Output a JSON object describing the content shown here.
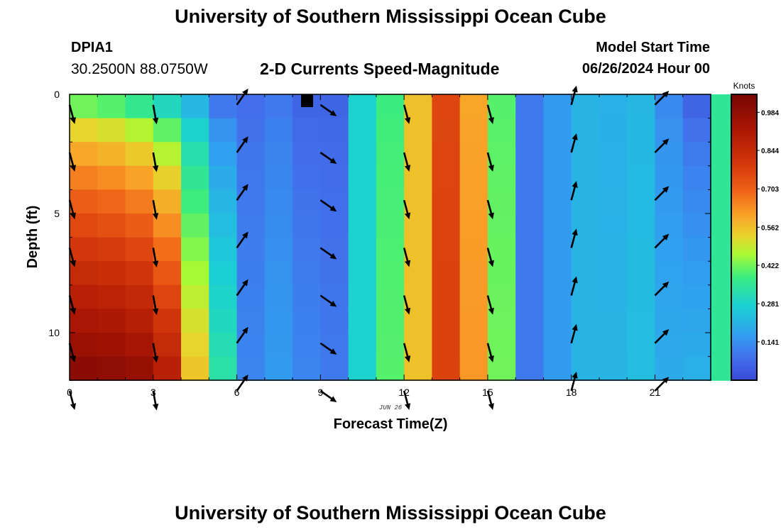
{
  "header": {
    "title": "University of Southern Mississippi Ocean Cube",
    "station_name": "DPIA1",
    "station_coords": "30.2500N  88.0750W",
    "chart_title": "2-D Currents Speed-Magnitude",
    "start_label": "Model Start Time",
    "start_value": "06/26/2024 Hour 00"
  },
  "footer": {
    "title": "University of Southern Mississippi Ocean Cube"
  },
  "chart_data": {
    "type": "heatmap",
    "title": "2-D Currents Speed-Magnitude",
    "xlabel": "Forecast Time(Z)",
    "ylabel": "Depth (ft)",
    "x_date_label": "JUN 26",
    "x_range": [
      0,
      23
    ],
    "y_range": [
      0,
      12
    ],
    "x_ticks": [
      0,
      3,
      6,
      9,
      12,
      15,
      18,
      21
    ],
    "y_ticks": [
      0,
      5,
      10
    ],
    "y_reversed": true,
    "colorbar": {
      "label": "Knots",
      "range": [
        0.0,
        1.05
      ],
      "ticks": [
        0.141,
        0.281,
        0.422,
        0.562,
        0.703,
        0.844,
        0.984
      ]
    },
    "columns": [
      {
        "hour": 0,
        "top": 0.42,
        "bottom": 1.0
      },
      {
        "hour": 1,
        "top": 0.4,
        "bottom": 0.99
      },
      {
        "hour": 2,
        "top": 0.36,
        "bottom": 0.97
      },
      {
        "hour": 3,
        "top": 0.3,
        "bottom": 0.88
      },
      {
        "hour": 4,
        "top": 0.22,
        "bottom": 0.55
      },
      {
        "hour": 5,
        "top": 0.1,
        "bottom": 0.33
      },
      {
        "hour": 6,
        "top": 0.08,
        "bottom": 0.12
      },
      {
        "hour": 7,
        "top": 0.1,
        "bottom": 0.16
      },
      {
        "hour": 8,
        "top": 0.06,
        "bottom": 0.12
      },
      {
        "hour": 9,
        "top": 0.06,
        "bottom": 0.1
      },
      {
        "hour": 10,
        "top": 0.28,
        "bottom": 0.28
      },
      {
        "hour": 11,
        "top": 0.38,
        "bottom": 0.4
      },
      {
        "hour": 12,
        "top": 0.56,
        "bottom": 0.56
      },
      {
        "hour": 13,
        "top": 0.76,
        "bottom": 0.77
      },
      {
        "hour": 14,
        "top": 0.6,
        "bottom": 0.62
      },
      {
        "hour": 15,
        "top": 0.4,
        "bottom": 0.42
      },
      {
        "hour": 16,
        "top": 0.1,
        "bottom": 0.1
      },
      {
        "hour": 17,
        "top": 0.16,
        "bottom": 0.16
      },
      {
        "hour": 18,
        "top": 0.21,
        "bottom": 0.21
      },
      {
        "hour": 19,
        "top": 0.2,
        "bottom": 0.21
      },
      {
        "hour": 20,
        "top": 0.22,
        "bottom": 0.23
      },
      {
        "hour": 21,
        "top": 0.13,
        "bottom": 0.19
      },
      {
        "hour": 22,
        "top": 0.06,
        "bottom": 0.2
      },
      {
        "hour": 23,
        "top": 0.35,
        "bottom": 0.35
      }
    ],
    "vectors": [
      {
        "hour": 0,
        "direction_deg": 165
      },
      {
        "hour": 3,
        "direction_deg": 170
      },
      {
        "hour": 6,
        "direction_deg": 35
      },
      {
        "hour": 9,
        "direction_deg": 125
      },
      {
        "hour": 12,
        "direction_deg": 165
      },
      {
        "hour": 15,
        "direction_deg": 165
      },
      {
        "hour": 18,
        "direction_deg": 15
      },
      {
        "hour": 21,
        "direction_deg": 45
      }
    ],
    "vector_depths": [
      0.5,
      2.5,
      4.5,
      6.5,
      8.5,
      10.5,
      12.5
    ]
  }
}
